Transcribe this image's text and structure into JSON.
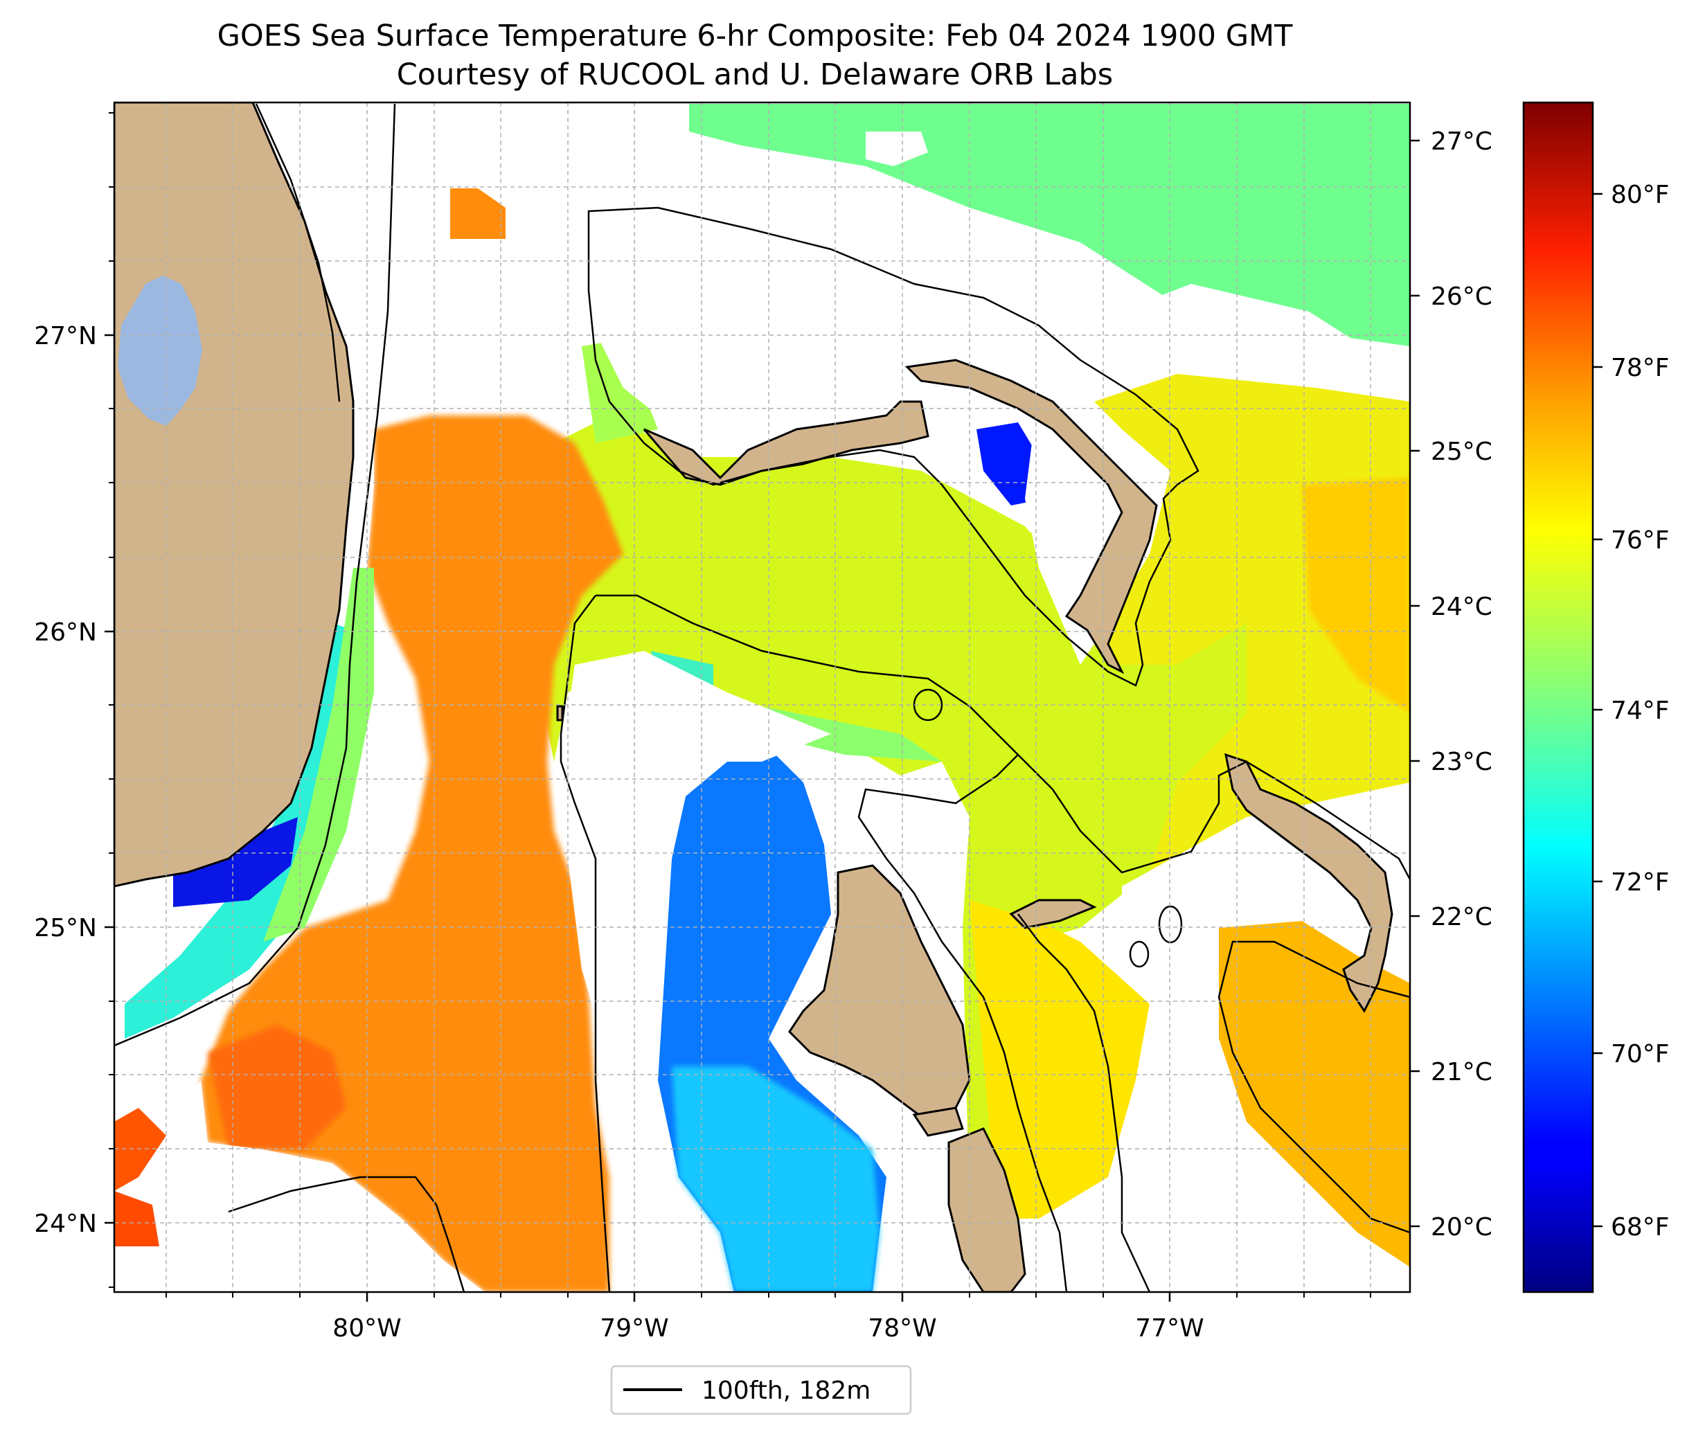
{
  "title": {
    "line1": "GOES Sea Surface Temperature 6-hr Composite: Feb 04 2024 1900 GMT",
    "line2": "Courtesy of RUCOOL and U. Delaware ORB Labs"
  },
  "axes": {
    "lon_labels": [
      "80°W",
      "79°W",
      "78°W",
      "77°W"
    ],
    "lat_labels": [
      "27°N",
      "26°N",
      "25°N",
      "24°N"
    ]
  },
  "colorbar": {
    "celsius_labels": [
      "27°C",
      "26°C",
      "25°C",
      "24°C",
      "23°C",
      "22°C",
      "21°C",
      "20°C"
    ],
    "fahrenheit_labels": [
      "80°F",
      "78°F",
      "76°F",
      "74°F",
      "72°F",
      "70°F",
      "68°F"
    ],
    "colormap": "jet",
    "range_f": [
      67.5,
      81.5
    ]
  },
  "legend": {
    "label": "100fth, 182m",
    "line_color": "#000000"
  },
  "colors": {
    "land": "#d2b48c",
    "lake": "#9ab8e0",
    "grid": "#b0b0b0"
  }
}
